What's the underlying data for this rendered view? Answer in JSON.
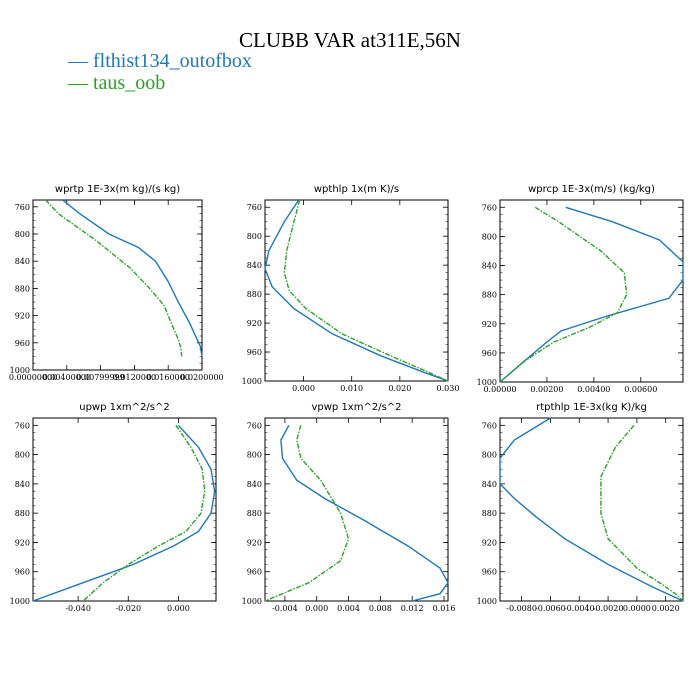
{
  "title": "CLUBB VAR at311E,56N",
  "legend": [
    {
      "label": "flthist134_outofbox",
      "color": "#1f77b4"
    },
    {
      "label": "taus_oob",
      "color": "#2ca02c"
    }
  ],
  "chart_data": [
    {
      "type": "line",
      "title": "wprtp   1E-3x(m kg)/(s kg)",
      "xlim": [
        0.0,
        0.02
      ],
      "ylim": [
        1000,
        750
      ],
      "yticks": [
        760,
        800,
        840,
        880,
        920,
        960,
        1000
      ],
      "xticks": [
        0.0,
        0.004,
        0.008,
        0.012,
        0.016,
        0.02
      ],
      "xticklabels": [
        "0.00000000",
        "0.00400000",
        "0.00799999",
        "0.0120000",
        "0.0160000",
        "0.0200000"
      ],
      "series": [
        {
          "name": "flthist134_outofbox",
          "color": "#1f77b4",
          "dashed": false,
          "x": [
            0.0035,
            0.0055,
            0.009,
            0.0125,
            0.0145,
            0.016,
            0.0172,
            0.0185,
            0.0198,
            0.02
          ],
          "y": [
            750,
            770,
            800,
            820,
            840,
            870,
            900,
            930,
            965,
            980
          ]
        },
        {
          "name": "taus_oob",
          "color": "#2ca02c",
          "dashed": true,
          "x": [
            0.0015,
            0.003,
            0.0075,
            0.0115,
            0.0138,
            0.0155,
            0.0165,
            0.0172,
            0.0175,
            0.0176
          ],
          "y": [
            750,
            770,
            810,
            850,
            880,
            905,
            935,
            955,
            968,
            980
          ]
        }
      ]
    },
    {
      "type": "line",
      "title": "wpthlp   1x(m K)/s",
      "xlim": [
        -0.008,
        0.03
      ],
      "ylim": [
        1000,
        750
      ],
      "yticks": [
        760,
        800,
        840,
        880,
        920,
        960,
        1000
      ],
      "xticks": [
        0.0,
        0.01,
        0.02,
        0.03
      ],
      "xticklabels": [
        "0.000",
        "0.010",
        "0.020",
        "0.030"
      ],
      "series": [
        {
          "name": "flthist134_outofbox",
          "color": "#1f77b4",
          "dashed": false,
          "x": [
            -0.001,
            -0.004,
            -0.0072,
            -0.008,
            -0.0065,
            -0.002,
            0.006,
            0.016,
            0.025,
            0.03
          ],
          "y": [
            750,
            780,
            820,
            845,
            870,
            900,
            935,
            965,
            988,
            1000
          ]
        },
        {
          "name": "taus_oob",
          "color": "#2ca02c",
          "dashed": true,
          "x": [
            -0.0008,
            -0.002,
            -0.0035,
            -0.004,
            -0.003,
            0.0005,
            0.008,
            0.018,
            0.026,
            0.03
          ],
          "y": [
            750,
            780,
            820,
            850,
            875,
            900,
            935,
            965,
            988,
            1000
          ]
        }
      ]
    },
    {
      "type": "line",
      "title": "wprcp   1E-3x(m/s) (kg/kg)",
      "xlim": [
        0.0,
        0.0078
      ],
      "ylim": [
        1000,
        750
      ],
      "yticks": [
        760,
        800,
        840,
        880,
        920,
        960,
        1000
      ],
      "xticks": [
        0.0,
        0.002,
        0.004,
        0.006
      ],
      "xticklabels": [
        "0.00000",
        "0.00200",
        "0.00400",
        "0.00600"
      ],
      "series": [
        {
          "name": "flthist134_outofbox",
          "color": "#1f77b4",
          "dashed": false,
          "x": [
            0.0028,
            0.0048,
            0.0068,
            0.0078,
            0.0078,
            0.0072,
            0.0045,
            0.0026,
            0.002,
            0.0009,
            0.0
          ],
          "y": [
            760,
            780,
            805,
            835,
            860,
            885,
            910,
            930,
            945,
            975,
            1000
          ]
        },
        {
          "name": "taus_oob",
          "color": "#2ca02c",
          "dashed": true,
          "x": [
            0.0015,
            0.0025,
            0.0043,
            0.0053,
            0.0054,
            0.005,
            0.0038,
            0.0023,
            0.0011,
            0.0
          ],
          "y": [
            760,
            780,
            820,
            850,
            880,
            905,
            925,
            945,
            970,
            1000
          ]
        }
      ]
    },
    {
      "type": "line",
      "title": "upwp   1xm^2/s^2",
      "xlim": [
        -0.058,
        0.015
      ],
      "ylim": [
        1000,
        750
      ],
      "yticks": [
        760,
        800,
        840,
        880,
        920,
        960,
        1000
      ],
      "xticks": [
        -0.04,
        -0.02,
        0.0
      ],
      "xticklabels": [
        "-0.040",
        "-0.020",
        "0.000"
      ],
      "series": [
        {
          "name": "flthist134_outofbox",
          "color": "#1f77b4",
          "dashed": false,
          "x": [
            0.0,
            0.008,
            0.013,
            0.0145,
            0.013,
            0.008,
            -0.002,
            -0.018,
            -0.038,
            -0.058
          ],
          "y": [
            760,
            790,
            820,
            850,
            880,
            905,
            925,
            950,
            975,
            1000
          ]
        },
        {
          "name": "taus_oob",
          "color": "#2ca02c",
          "dashed": true,
          "x": [
            -0.001,
            0.005,
            0.0095,
            0.0105,
            0.009,
            0.003,
            -0.008,
            -0.02,
            -0.03,
            -0.038
          ],
          "y": [
            760,
            790,
            820,
            850,
            880,
            905,
            925,
            950,
            975,
            1000
          ]
        }
      ]
    },
    {
      "type": "line",
      "title": "vpwp   1xm^2/s^2",
      "xlim": [
        -0.0065,
        0.0165
      ],
      "ylim": [
        1000,
        750
      ],
      "yticks": [
        760,
        800,
        840,
        880,
        920,
        960,
        1000
      ],
      "xticks": [
        -0.004,
        0.0,
        0.004,
        0.008,
        0.012,
        0.016
      ],
      "xticklabels": [
        "-0.004",
        "0.000",
        "0.004",
        "0.008",
        "0.012",
        "0.016"
      ],
      "series": [
        {
          "name": "flthist134_outofbox",
          "color": "#1f77b4",
          "dashed": false,
          "x": [
            -0.0035,
            -0.0045,
            -0.0043,
            -0.0025,
            0.001,
            0.006,
            0.0115,
            0.0155,
            0.0165,
            0.0155,
            0.012
          ],
          "y": [
            760,
            780,
            805,
            835,
            860,
            890,
            925,
            955,
            975,
            990,
            1000
          ]
        },
        {
          "name": "taus_oob",
          "color": "#2ca02c",
          "dashed": true,
          "x": [
            -0.002,
            -0.0025,
            -0.002,
            0.0005,
            0.003,
            0.004,
            0.003,
            -0.001,
            -0.0065
          ],
          "y": [
            760,
            780,
            805,
            835,
            880,
            915,
            945,
            975,
            1000
          ]
        }
      ]
    },
    {
      "type": "line",
      "title": "rtpthlp   1E-3x(kg K)/kg",
      "xlim": [
        -0.0095,
        0.0032
      ],
      "ylim": [
        1000,
        750
      ],
      "yticks": [
        760,
        800,
        840,
        880,
        920,
        960,
        1000
      ],
      "xticks": [
        -0.008,
        -0.006,
        -0.004,
        -0.002,
        0.0,
        0.002
      ],
      "xticklabels": [
        "-0.0080",
        "-0.0060",
        "-0.0040",
        "-0.0020",
        "0.0000",
        "0.0020"
      ],
      "series": [
        {
          "name": "flthist134_outofbox",
          "color": "#1f77b4",
          "dashed": false,
          "x": [
            -0.006,
            -0.0085,
            -0.0095,
            -0.0095,
            -0.0085,
            -0.007,
            -0.005,
            -0.002,
            0.001,
            0.0032
          ],
          "y": [
            750,
            780,
            805,
            840,
            860,
            885,
            915,
            950,
            980,
            1000
          ]
        },
        {
          "name": "taus_oob",
          "color": "#2ca02c",
          "dashed": true,
          "x": [
            -0.0002,
            -0.0015,
            -0.0025,
            -0.0025,
            -0.002,
            0.0,
            0.0018,
            0.0028,
            0.0032
          ],
          "y": [
            760,
            790,
            830,
            880,
            915,
            955,
            978,
            992,
            1000
          ]
        }
      ]
    }
  ]
}
